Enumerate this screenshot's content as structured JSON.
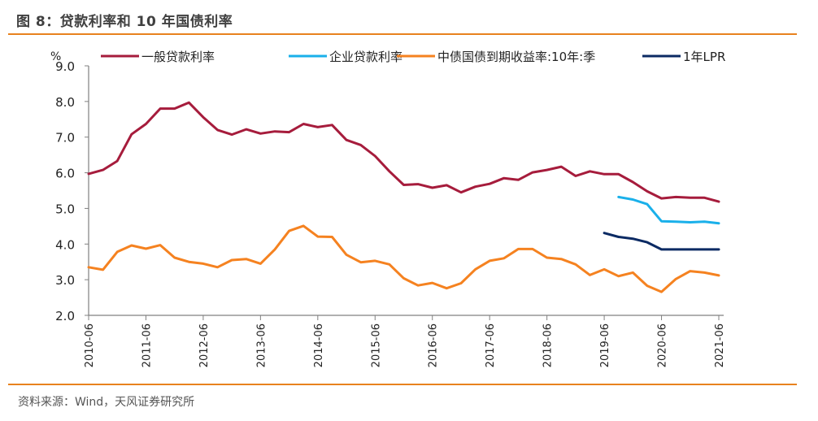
{
  "header": {
    "title": "图 8：贷款利率和 10 年国债利率"
  },
  "footer": {
    "source": "资料来源：Wind，天风证券研究所"
  },
  "colors": {
    "general_loan": "#a61c3c",
    "enterprise_loan": "#1ab0ea",
    "bond_10y": "#f58220",
    "lpr_1y": "#0b2a63",
    "rule": "#e8821e",
    "axis": "#808080"
  },
  "chart_data": {
    "type": "line",
    "title": "贷款利率和 10 年国债利率",
    "ylabel": "%",
    "xlabel": "",
    "ylim": [
      2.0,
      9.0
    ],
    "yticks": [
      "2.0",
      "3.0",
      "4.0",
      "5.0",
      "6.0",
      "7.0",
      "8.0",
      "9.0"
    ],
    "xticks": [
      "2010-06",
      "2011-06",
      "2012-06",
      "2013-06",
      "2014-06",
      "2015-06",
      "2016-06",
      "2017-06",
      "2018-06",
      "2019-06",
      "2020-06",
      "2021-06"
    ],
    "grid": false,
    "legend_position": "top",
    "x_start": "2010-06",
    "x_step": "quarter",
    "series": [
      {
        "name": "一般贷款利率",
        "color_key": "general_loan",
        "start_index": 0,
        "values": [
          5.97,
          6.08,
          6.33,
          7.08,
          7.37,
          7.8,
          7.8,
          7.97,
          7.56,
          7.2,
          7.07,
          7.22,
          7.1,
          7.16,
          7.14,
          7.37,
          7.28,
          7.34,
          6.92,
          6.78,
          6.47,
          6.04,
          5.66,
          5.68,
          5.58,
          5.65,
          5.45,
          5.61,
          5.69,
          5.85,
          5.8,
          6.01,
          6.08,
          6.17,
          5.91,
          6.04,
          5.96,
          5.96,
          5.74,
          5.48,
          5.28,
          5.32,
          5.3,
          5.3,
          5.19
        ]
      },
      {
        "name": "企业贷款利率",
        "color_key": "enterprise_loan",
        "start_index": 37,
        "values": [
          5.32,
          5.25,
          5.12,
          4.64,
          4.63,
          4.61,
          4.63,
          4.58
        ]
      },
      {
        "name": "中债国债到期收益率:10年:季",
        "color_key": "bond_10y",
        "start_index": 0,
        "values": [
          3.35,
          3.28,
          3.78,
          3.96,
          3.87,
          3.97,
          3.62,
          3.5,
          3.45,
          3.35,
          3.55,
          3.58,
          3.45,
          3.85,
          4.37,
          4.51,
          4.21,
          4.2,
          3.7,
          3.49,
          3.53,
          3.43,
          3.04,
          2.84,
          2.91,
          2.76,
          2.9,
          3.29,
          3.53,
          3.6,
          3.86,
          3.86,
          3.62,
          3.58,
          3.43,
          3.13,
          3.29,
          3.1,
          3.2,
          2.83,
          2.66,
          3.02,
          3.24,
          3.2,
          3.12
        ]
      },
      {
        "name": "1年LPR",
        "color_key": "lpr_1y",
        "start_index": 36,
        "values": [
          4.31,
          4.2,
          4.15,
          4.05,
          3.85,
          3.85,
          3.85,
          3.85,
          3.85
        ]
      }
    ]
  }
}
